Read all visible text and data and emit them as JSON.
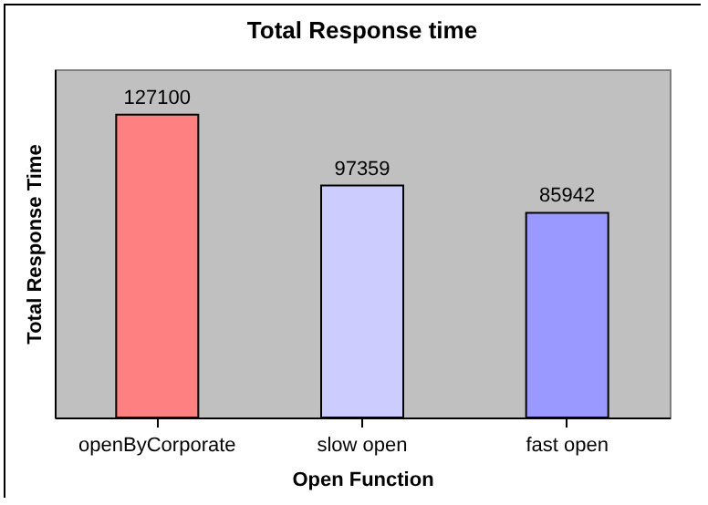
{
  "chart_data": {
    "type": "bar",
    "title": "Total Response time",
    "xlabel": "Open Function",
    "ylabel": "Total Response Time",
    "categories": [
      "openByCorporate",
      "slow open",
      "fast open"
    ],
    "values": [
      127100,
      97359,
      85942
    ],
    "colors": [
      "#ff8080",
      "#ccccff",
      "#9999ff"
    ],
    "data_labels": true
  }
}
